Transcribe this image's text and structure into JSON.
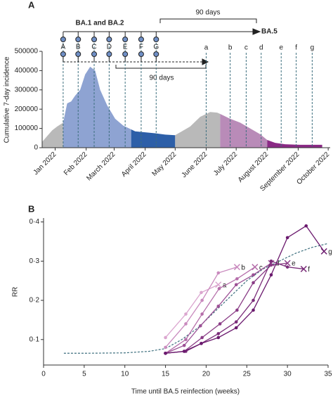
{
  "chart_data": [
    {
      "type": "area",
      "panel": "A",
      "ylabel": "Cumulative 7-day incidence",
      "xlim": [
        -13,
        275
      ],
      "xticks": [
        {
          "value": 0,
          "label": "Jan 2022"
        },
        {
          "value": 31,
          "label": "Feb 2022"
        },
        {
          "value": 59,
          "label": "March 2022"
        },
        {
          "value": 90,
          "label": "April 2022"
        },
        {
          "value": 120,
          "label": "May 2022"
        },
        {
          "value": 151,
          "label": "June 2022"
        },
        {
          "value": 181,
          "label": "July 2022"
        },
        {
          "value": 212,
          "label": "August 2022"
        },
        {
          "value": 243,
          "label": "September 2022"
        },
        {
          "value": 273,
          "label": "October 2022"
        }
      ],
      "ylim": [
        0,
        500000
      ],
      "yticks": [
        0,
        100000,
        200000,
        300000,
        400000,
        500000
      ],
      "series": [
        {
          "color": "#b9b9b9",
          "x": [
            -13,
            -8,
            -3,
            2,
            8
          ],
          "values": [
            30000,
            60000,
            90000,
            110000,
            130000
          ]
        },
        {
          "color": "#8ea3d2",
          "x": [
            8,
            12,
            16,
            20,
            25,
            30,
            35,
            40,
            45,
            52,
            60,
            68,
            76
          ],
          "values": [
            130000,
            230000,
            240000,
            270000,
            300000,
            380000,
            420000,
            400000,
            300000,
            220000,
            150000,
            115000,
            95000
          ]
        },
        {
          "color": "#2d5fa8",
          "x": [
            76,
            80,
            90,
            100,
            110,
            120
          ],
          "values": [
            95000,
            85000,
            80000,
            75000,
            68000,
            65000
          ]
        },
        {
          "color": "#b9b9b9",
          "x": [
            120,
            125,
            135,
            145,
            155,
            162,
            165
          ],
          "values": [
            65000,
            80000,
            110000,
            160000,
            185000,
            182000,
            175000
          ]
        },
        {
          "color": "#b98bb8",
          "x": [
            165,
            175,
            185,
            195,
            205,
            212
          ],
          "values": [
            175000,
            150000,
            130000,
            100000,
            70000,
            40000
          ]
        },
        {
          "color": "#8a2a85",
          "x": [
            212,
            220,
            230,
            245,
            267
          ],
          "values": [
            40000,
            25000,
            18000,
            15000,
            15000
          ]
        }
      ],
      "markers": [
        {
          "label": "A",
          "x": 8
        },
        {
          "label": "B",
          "x": 23
        },
        {
          "label": "C",
          "x": 39
        },
        {
          "label": "D",
          "x": 54
        },
        {
          "label": "E",
          "x": 70
        },
        {
          "label": "F",
          "x": 86
        },
        {
          "label": "G",
          "x": 101
        },
        {
          "label": "a",
          "x": 151
        },
        {
          "label": "b",
          "x": 175
        },
        {
          "label": "c",
          "x": 191
        },
        {
          "label": "d",
          "x": 206
        },
        {
          "label": "e",
          "x": 226
        },
        {
          "label": "f",
          "x": 241
        },
        {
          "label": "g",
          "x": 257
        }
      ],
      "annotations": {
        "group": "BA.1 and BA.2",
        "span_top": "90 days",
        "target": "BA.5",
        "span_bottom": "90 days"
      }
    },
    {
      "type": "line",
      "panel": "B",
      "xlabel": "Time until BA.5 reinfection (weeks)",
      "ylabel": "RR",
      "xlim": [
        0,
        35
      ],
      "xticks": [
        0,
        5,
        10,
        15,
        20,
        25,
        30,
        35
      ],
      "ylim": [
        0.035,
        0.41
      ],
      "yticks": [
        {
          "value": 0.1,
          "label": "0·1"
        },
        {
          "value": 0.2,
          "label": "0·2"
        },
        {
          "value": 0.3,
          "label": "0·3"
        },
        {
          "value": 0.4,
          "label": "0·4"
        }
      ],
      "fit": {
        "color": "#3d6f7e",
        "x": [
          2.5,
          5,
          10,
          13,
          15,
          17,
          19,
          21,
          23,
          25,
          27,
          29,
          31,
          33,
          35
        ],
        "values": [
          0.065,
          0.065,
          0.066,
          0.07,
          0.077,
          0.1,
          0.13,
          0.17,
          0.21,
          0.25,
          0.28,
          0.3,
          0.32,
          0.335,
          0.345
        ]
      },
      "series": [
        {
          "name": "a",
          "color": "#dba6cf",
          "x": [
            15,
            17.5,
            19.4,
            21.5
          ],
          "values": [
            0.105,
            0.165,
            0.22,
            0.24
          ]
        },
        {
          "name": "b",
          "color": "#c98abe",
          "x": [
            15,
            17.5,
            19.5,
            21.5,
            23.8
          ],
          "values": [
            0.08,
            0.14,
            0.2,
            0.27,
            0.285
          ]
        },
        {
          "name": "c",
          "color": "#b56eaa",
          "x": [
            15,
            17.5,
            19.5,
            21.6,
            23.8,
            26
          ],
          "values": [
            0.065,
            0.1,
            0.165,
            0.23,
            0.255,
            0.285
          ]
        },
        {
          "name": "d",
          "color": "#9c5095",
          "x": [
            15,
            17.3,
            19.3,
            21.5,
            23.7,
            25.8,
            28
          ],
          "values": [
            0.065,
            0.085,
            0.135,
            0.185,
            0.24,
            0.265,
            0.295
          ]
        },
        {
          "name": "e",
          "color": "#8a3c86",
          "x": [
            15,
            17.3,
            19.5,
            21.7,
            23.8,
            25.8,
            28,
            30
          ],
          "values": [
            0.065,
            0.07,
            0.105,
            0.14,
            0.175,
            0.245,
            0.29,
            0.295
          ]
        },
        {
          "name": "f",
          "color": "#7a2c79",
          "x": [
            15,
            17.5,
            19.4,
            21.5,
            23.7,
            25.8,
            28,
            30,
            32
          ],
          "values": [
            0.065,
            0.07,
            0.09,
            0.115,
            0.145,
            0.2,
            0.3,
            0.285,
            0.28
          ]
        },
        {
          "name": "g",
          "color": "#6b1a6e",
          "x": [
            15,
            17.3,
            19.4,
            21.5,
            23.7,
            25.8,
            28,
            30,
            32.3,
            34.5
          ],
          "values": [
            0.065,
            0.07,
            0.09,
            0.105,
            0.13,
            0.175,
            0.265,
            0.36,
            0.39,
            0.325
          ]
        }
      ]
    }
  ]
}
